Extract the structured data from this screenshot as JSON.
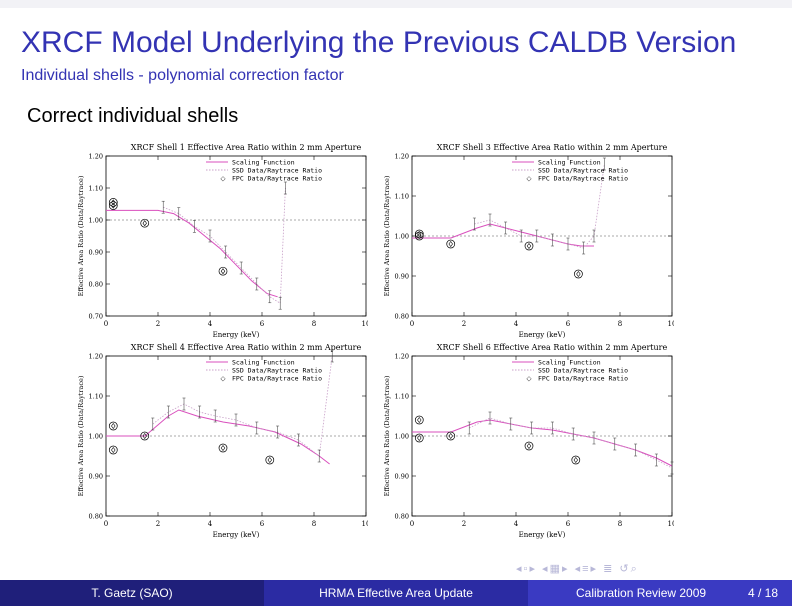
{
  "slide": {
    "title": "XRCF Model Underlying the Previous CALDB Version",
    "subtitle": "Individual shells - polynomial correction factor",
    "heading": "Correct individual shells"
  },
  "footer": {
    "author": "T. Gaetz (SAO)",
    "talk": "HRMA Effective Area Update",
    "venue": "Calibration Review 2009",
    "page": "4 / 18"
  },
  "nav_icons": [
    "nav-prev-frame-icon",
    "nav-next-frame-icon",
    "nav-prev-section-icon",
    "nav-next-section-icon",
    "nav-align-icon",
    "nav-search-icon"
  ],
  "colors": {
    "accent": "#3333b3",
    "scaling_line": "#d94fbd",
    "ssd_line": "#c8a0c8",
    "footer_dark": "#1f1f7a",
    "footer_mid": "#2b2ba3",
    "footer_light": "#3a3ac2"
  },
  "chart_data": [
    {
      "type": "line",
      "title": "XRCF Shell 1 Effective Area Ratio within 2 mm Aperture",
      "xlabel": "Energy (keV)",
      "ylabel": "Effective Area Ratio (Data/Raytrace)",
      "xlim": [
        0,
        10
      ],
      "ylim": [
        0.7,
        1.2
      ],
      "xticks": [
        "0",
        "2",
        "4",
        "6",
        "8",
        "10"
      ],
      "yticks": [
        "0.70",
        "0.80",
        "0.90",
        "1.00",
        "1.10",
        "1.20"
      ],
      "reference_line": 1.0,
      "grid": false,
      "legend_position": "top-right",
      "series": [
        {
          "name": "Scaling Function",
          "style": "solid",
          "x": [
            0,
            2,
            2.6,
            3.2,
            3.8,
            4.4,
            5.0,
            5.6,
            6.2,
            6.6
          ],
          "y": [
            1.03,
            1.03,
            1.02,
            0.99,
            0.95,
            0.91,
            0.86,
            0.81,
            0.77,
            0.76
          ]
        },
        {
          "name": "SSD Data/Raytrace Ratio",
          "style": "dotted",
          "x": [
            2.2,
            2.8,
            3.4,
            4.0,
            4.6,
            5.2,
            5.8,
            6.3,
            6.7,
            6.9
          ],
          "y": [
            1.04,
            1.02,
            0.98,
            0.95,
            0.9,
            0.85,
            0.8,
            0.76,
            0.74,
            1.1
          ]
        },
        {
          "name": "FPC Data/Raytrace Ratio",
          "style": "marker",
          "x": [
            0.28,
            0.28,
            1.49,
            4.5
          ],
          "y": [
            1.055,
            1.045,
            0.99,
            0.84
          ]
        }
      ]
    },
    {
      "type": "line",
      "title": "XRCF Shell 3 Effective Area Ratio within 2 mm Aperture",
      "xlabel": "Energy (keV)",
      "ylabel": "Effective Area Ratio (Data/Raytrace)",
      "xlim": [
        0,
        10
      ],
      "ylim": [
        0.8,
        1.2
      ],
      "xticks": [
        "0",
        "2",
        "4",
        "6",
        "8",
        "10"
      ],
      "yticks": [
        "0.80",
        "0.90",
        "1.00",
        "1.10",
        "1.20"
      ],
      "reference_line": 1.0,
      "grid": false,
      "legend_position": "top-right",
      "series": [
        {
          "name": "Scaling Function",
          "style": "solid",
          "x": [
            0,
            1.5,
            2.5,
            3.0,
            3.6,
            4.2,
            4.8,
            5.4,
            6.0,
            6.5,
            7.0
          ],
          "y": [
            0.995,
            0.995,
            1.02,
            1.03,
            1.02,
            1.01,
            1.0,
            0.99,
            0.98,
            0.975,
            0.975
          ]
        },
        {
          "name": "SSD Data/Raytrace Ratio",
          "style": "dotted",
          "x": [
            2.4,
            3.0,
            3.6,
            4.2,
            4.8,
            5.4,
            6.0,
            6.6,
            7.0,
            7.4
          ],
          "y": [
            1.03,
            1.04,
            1.02,
            1.0,
            1.0,
            0.99,
            0.98,
            0.97,
            1.0,
            1.18
          ]
        },
        {
          "name": "FPC Data/Raytrace Ratio",
          "style": "marker",
          "x": [
            0.28,
            0.28,
            1.49,
            4.5,
            6.4
          ],
          "y": [
            1.0,
            1.005,
            0.98,
            0.975,
            0.905
          ]
        }
      ]
    },
    {
      "type": "line",
      "title": "XRCF Shell 4 Effective Area Ratio within 2 mm Aperture",
      "xlabel": "Energy (keV)",
      "ylabel": "Effective Area Ratio (Data/Raytrace)",
      "xlim": [
        0,
        10
      ],
      "ylim": [
        0.8,
        1.2
      ],
      "xticks": [
        "0",
        "2",
        "4",
        "6",
        "8",
        "10"
      ],
      "yticks": [
        "0.80",
        "0.90",
        "1.00",
        "1.10",
        "1.20"
      ],
      "reference_line": 1.0,
      "grid": false,
      "legend_position": "top-right",
      "series": [
        {
          "name": "Scaling Function",
          "style": "solid",
          "x": [
            0,
            1.5,
            2.4,
            2.8,
            3.5,
            4.5,
            5.5,
            6.5,
            7.5,
            8.2,
            8.6
          ],
          "y": [
            1.0,
            1.0,
            1.05,
            1.065,
            1.05,
            1.035,
            1.025,
            1.01,
            0.98,
            0.95,
            0.93
          ]
        },
        {
          "name": "SSD Data/Raytrace Ratio",
          "style": "dotted",
          "x": [
            1.8,
            2.4,
            3.0,
            3.6,
            4.2,
            5.0,
            5.8,
            6.6,
            7.4,
            8.2,
            8.7
          ],
          "y": [
            1.03,
            1.06,
            1.08,
            1.06,
            1.05,
            1.04,
            1.02,
            1.01,
            0.99,
            0.95,
            1.2
          ]
        },
        {
          "name": "FPC Data/Raytrace Ratio",
          "style": "marker",
          "x": [
            0.28,
            0.28,
            1.49,
            4.5,
            6.3
          ],
          "y": [
            1.025,
            0.965,
            1.0,
            0.97,
            0.94
          ]
        }
      ]
    },
    {
      "type": "line",
      "title": "XRCF Shell 6 Effective Area Ratio within 2 mm Aperture",
      "xlabel": "Energy (keV)",
      "ylabel": "Effective Area Ratio (Data/Raytrace)",
      "xlim": [
        0,
        10
      ],
      "ylim": [
        0.8,
        1.2
      ],
      "xticks": [
        "0",
        "2",
        "4",
        "6",
        "8",
        "10"
      ],
      "yticks": [
        "0.80",
        "0.90",
        "1.00",
        "1.10",
        "1.20"
      ],
      "reference_line": 1.0,
      "grid": false,
      "legend_position": "top-right",
      "series": [
        {
          "name": "Scaling Function",
          "style": "solid",
          "x": [
            0,
            1.5,
            2.5,
            3.0,
            3.8,
            4.6,
            5.4,
            6.2,
            7.0,
            7.8,
            8.6,
            9.4,
            10.0
          ],
          "y": [
            1.01,
            1.01,
            1.035,
            1.04,
            1.03,
            1.02,
            1.015,
            1.005,
            0.995,
            0.98,
            0.965,
            0.945,
            0.925
          ]
        },
        {
          "name": "SSD Data/Raytrace Ratio",
          "style": "dotted",
          "x": [
            2.2,
            3.0,
            3.8,
            4.6,
            5.4,
            6.2,
            7.0,
            7.8,
            8.6,
            9.4,
            10.0
          ],
          "y": [
            1.02,
            1.045,
            1.03,
            1.02,
            1.02,
            1.005,
            0.995,
            0.98,
            0.965,
            0.94,
            0.92
          ]
        },
        {
          "name": "FPC Data/Raytrace Ratio",
          "style": "marker",
          "x": [
            0.28,
            0.28,
            1.49,
            4.5,
            6.3
          ],
          "y": [
            1.04,
            0.995,
            1.0,
            0.975,
            0.94
          ]
        }
      ]
    }
  ]
}
